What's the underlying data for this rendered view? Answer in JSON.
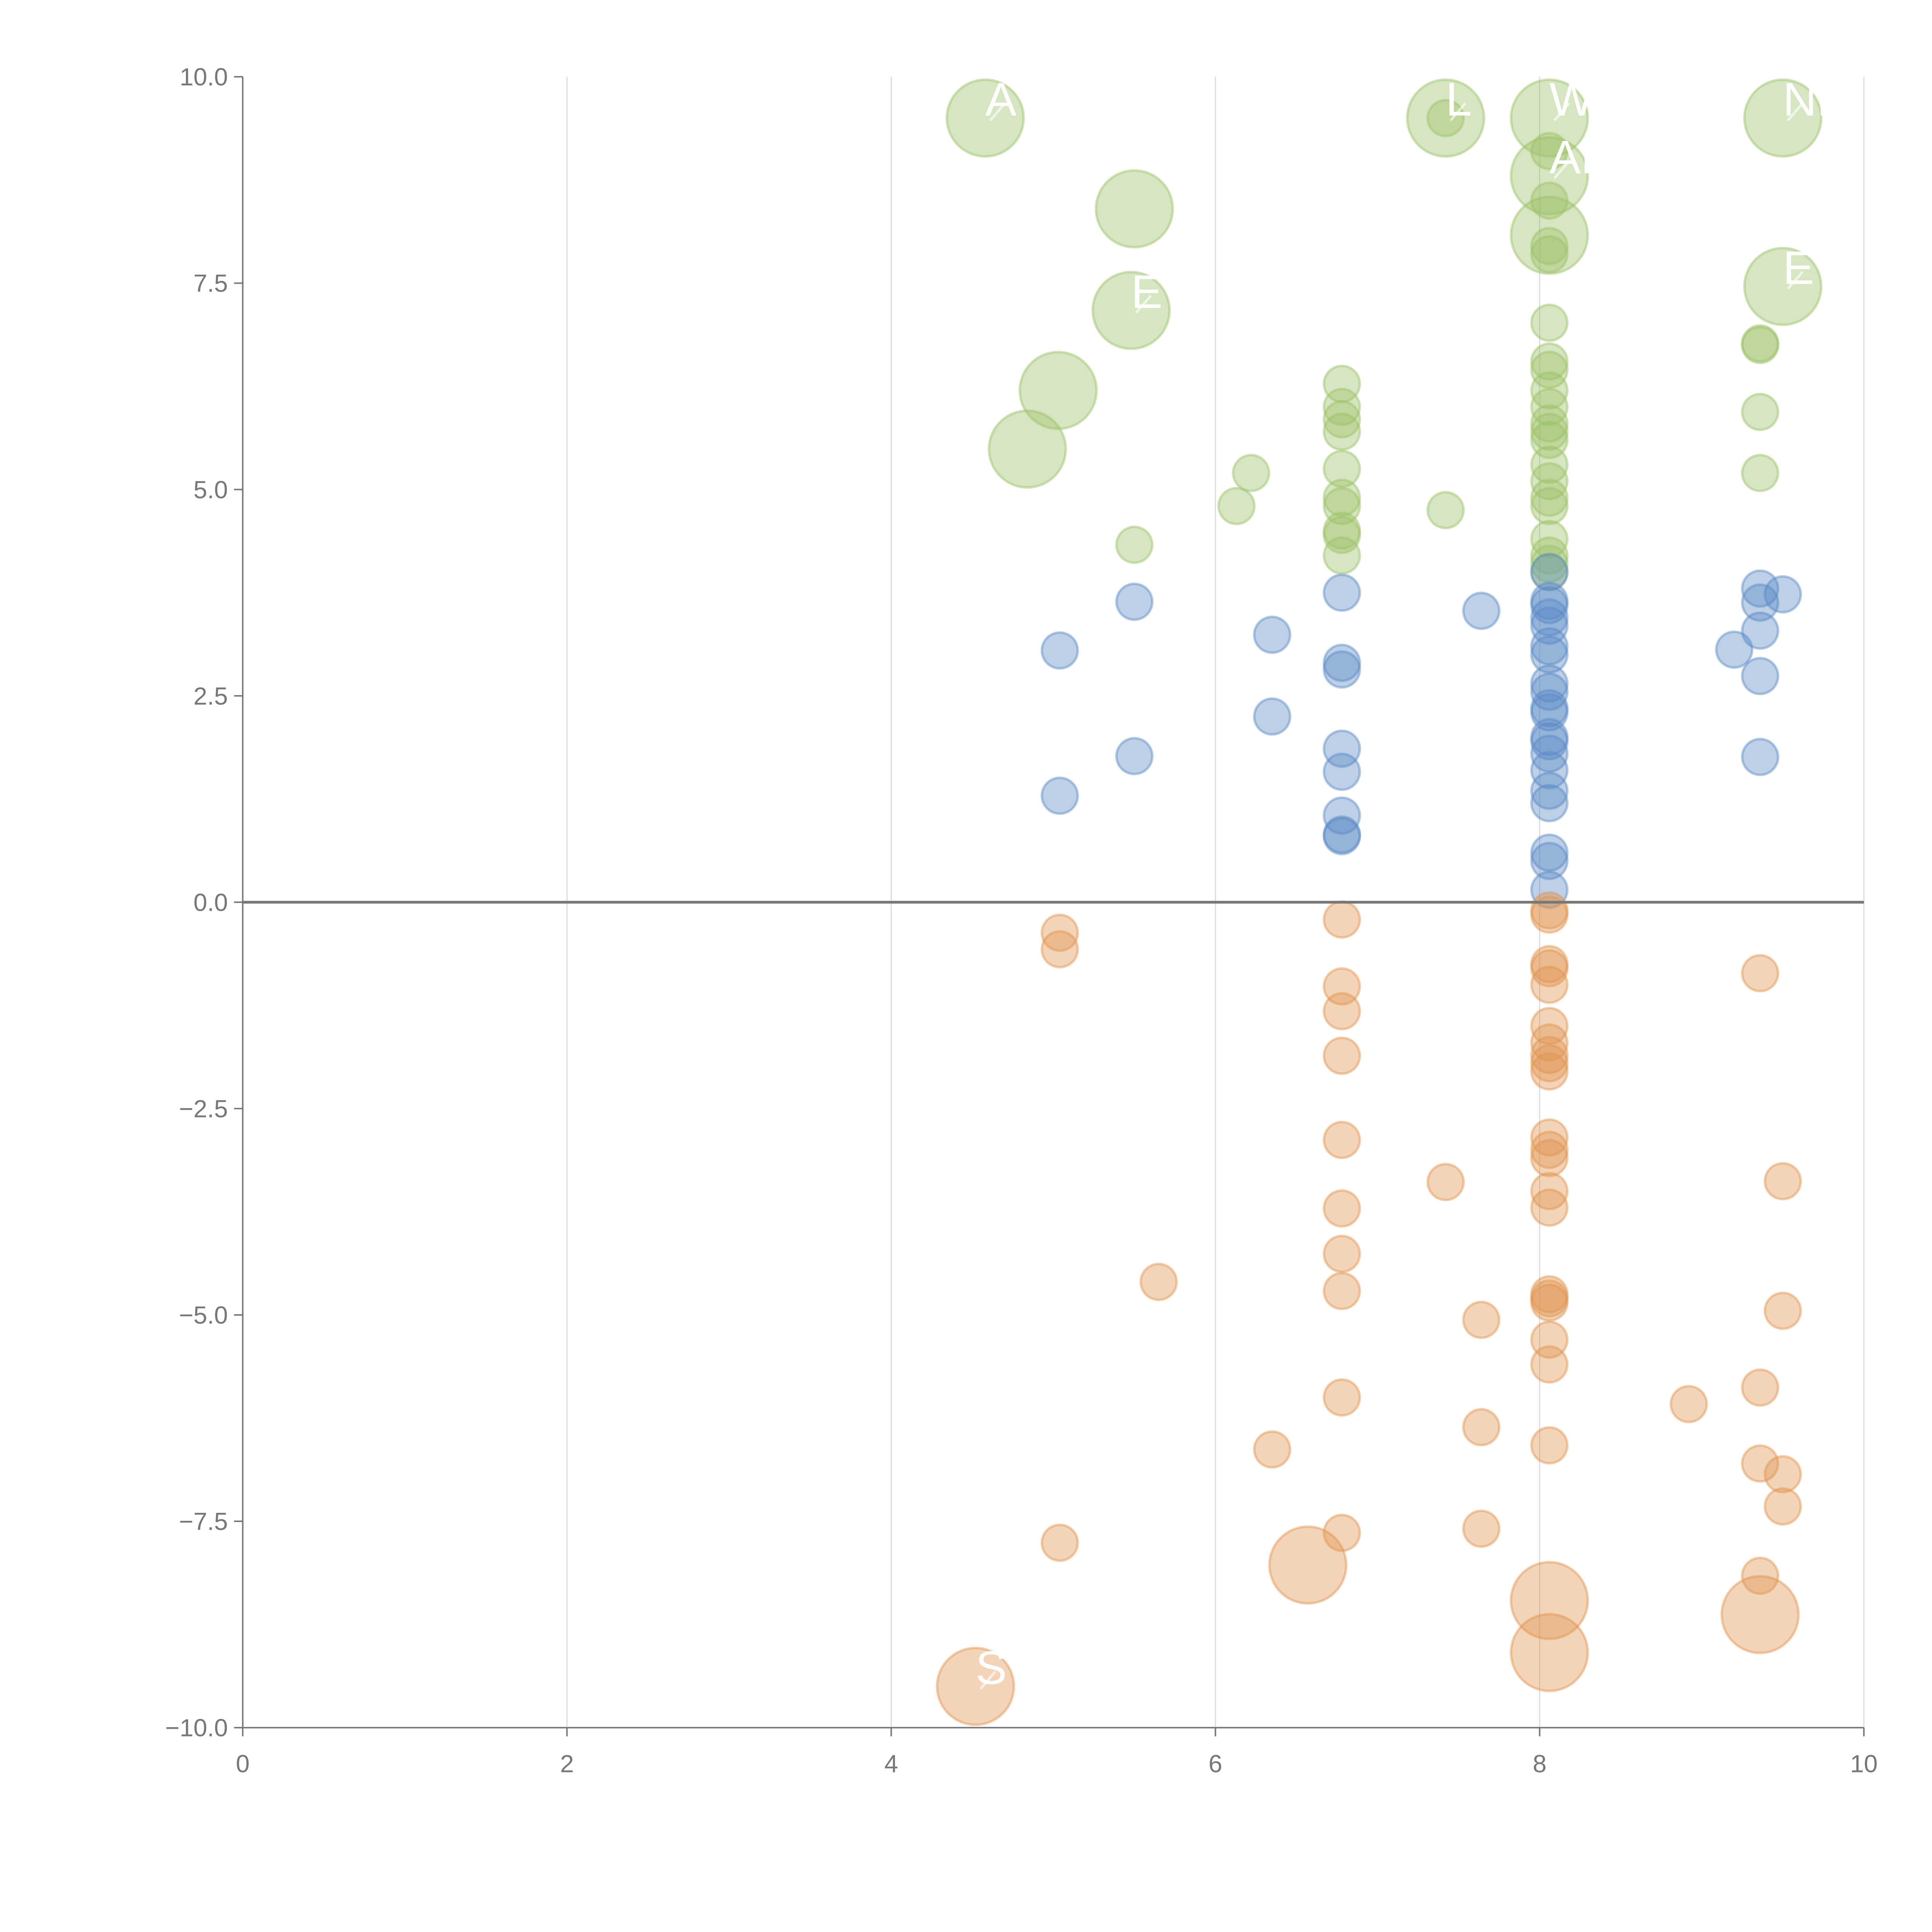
{
  "chart_data": {
    "type": "scatter",
    "title": "",
    "xlabel": "",
    "ylabel": "",
    "xlim": [
      0,
      10
    ],
    "ylim": [
      -10,
      10
    ],
    "x_ticks": [
      "0",
      "2",
      "4",
      "6",
      "8",
      "10"
    ],
    "y_ticks": [
      "10.0",
      "7.5",
      "5.0",
      "2.5",
      "0.0",
      "−2.5",
      "−5.0",
      "−7.5",
      "−10.0"
    ],
    "x_tick_values": [
      0,
      2,
      4,
      6,
      8,
      10
    ],
    "y_tick_values": [
      10,
      7.5,
      5,
      2.5,
      0,
      -2.5,
      -5,
      -7.5,
      -10
    ],
    "grid": "vertical",
    "zero_line": true,
    "point_labels_note": "partially visible white labels",
    "series": [
      {
        "name": "green",
        "color": "#9cc167",
        "points": [
          [
            4.58,
            9.5,
            2,
            "A"
          ],
          [
            5.5,
            8.4,
            2,
            ""
          ],
          [
            5.48,
            7.17,
            2,
            "E"
          ],
          [
            5.03,
            6.2,
            2,
            ""
          ],
          [
            4.84,
            5.49,
            2,
            ""
          ],
          [
            7.42,
            9.5,
            2,
            "L"
          ],
          [
            8.06,
            9.5,
            2,
            "WA"
          ],
          [
            8.06,
            8.8,
            2,
            "AR"
          ],
          [
            8.06,
            8.08,
            2,
            ""
          ],
          [
            9.5,
            9.5,
            2,
            "NE"
          ],
          [
            9.5,
            7.46,
            2,
            "E"
          ],
          [
            7.42,
            9.5,
            1
          ],
          [
            8.06,
            9.1,
            1
          ],
          [
            8.06,
            8.5,
            1
          ],
          [
            8.06,
            7.95,
            1
          ],
          [
            8.06,
            7.85,
            1
          ],
          [
            8.06,
            7.02,
            1
          ],
          [
            8.06,
            6.55,
            1
          ],
          [
            8.06,
            6.45,
            1
          ],
          [
            8.06,
            6.2,
            1
          ],
          [
            8.06,
            6.0,
            1
          ],
          [
            8.06,
            5.8,
            1
          ],
          [
            8.06,
            5.7,
            1
          ],
          [
            8.06,
            5.6,
            1
          ],
          [
            8.06,
            5.3,
            1
          ],
          [
            8.06,
            5.1,
            1
          ],
          [
            8.06,
            4.9,
            1
          ],
          [
            8.06,
            4.8,
            1
          ],
          [
            8.06,
            4.4,
            1
          ],
          [
            8.06,
            4.2,
            1
          ],
          [
            8.06,
            4.1,
            1
          ],
          [
            8.06,
            4.0,
            1
          ],
          [
            9.36,
            6.77,
            1
          ],
          [
            9.36,
            6.75,
            1
          ],
          [
            9.36,
            5.94,
            1
          ],
          [
            9.36,
            5.2,
            1
          ],
          [
            6.78,
            6.28,
            1
          ],
          [
            6.78,
            6.0,
            1
          ],
          [
            6.78,
            5.85,
            1
          ],
          [
            6.78,
            5.7,
            1
          ],
          [
            6.78,
            5.25,
            1
          ],
          [
            6.78,
            4.9,
            1
          ],
          [
            6.78,
            4.8,
            1
          ],
          [
            6.78,
            4.5,
            1
          ],
          [
            6.78,
            4.45,
            1
          ],
          [
            6.78,
            4.2,
            1
          ],
          [
            6.22,
            5.2,
            1
          ],
          [
            6.13,
            4.8,
            1
          ],
          [
            7.42,
            4.75,
            1
          ],
          [
            5.5,
            4.33,
            1
          ]
        ]
      },
      {
        "name": "blue",
        "color": "#5b8ac6",
        "points": [
          [
            5.04,
            3.05,
            1
          ],
          [
            5.04,
            1.29,
            1
          ],
          [
            5.5,
            3.64,
            1
          ],
          [
            5.5,
            1.77,
            1
          ],
          [
            6.35,
            3.24,
            1
          ],
          [
            6.35,
            2.25,
            1
          ],
          [
            6.78,
            3.75,
            1
          ],
          [
            6.78,
            2.9,
            1
          ],
          [
            6.78,
            2.82,
            1
          ],
          [
            6.78,
            1.86,
            1
          ],
          [
            6.78,
            1.58,
            1
          ],
          [
            6.78,
            1.05,
            1
          ],
          [
            6.78,
            0.8,
            1
          ],
          [
            6.78,
            0.82,
            1
          ],
          [
            7.64,
            3.53,
            1
          ],
          [
            8.06,
            4.0,
            1
          ],
          [
            8.06,
            3.65,
            1
          ],
          [
            8.06,
            3.6,
            1
          ],
          [
            8.06,
            3.45,
            1
          ],
          [
            8.06,
            3.35,
            1
          ],
          [
            8.06,
            3.1,
            1
          ],
          [
            8.06,
            3.0,
            1
          ],
          [
            8.06,
            2.65,
            1
          ],
          [
            8.06,
            2.55,
            1
          ],
          [
            8.06,
            2.35,
            1
          ],
          [
            8.06,
            2.3,
            1
          ],
          [
            8.06,
            2.0,
            1
          ],
          [
            8.06,
            1.95,
            1
          ],
          [
            8.06,
            1.8,
            1
          ],
          [
            8.06,
            1.6,
            1
          ],
          [
            8.06,
            1.35,
            1
          ],
          [
            8.06,
            1.2,
            1
          ],
          [
            8.06,
            0.6,
            1
          ],
          [
            8.06,
            0.5,
            1
          ],
          [
            8.06,
            0.15,
            1
          ],
          [
            9.36,
            3.8,
            1
          ],
          [
            9.36,
            3.63,
            1
          ],
          [
            9.36,
            3.29,
            1
          ],
          [
            9.36,
            2.74,
            1
          ],
          [
            9.36,
            1.76,
            1
          ],
          [
            9.5,
            3.73,
            1
          ],
          [
            9.2,
            3.06,
            1
          ]
        ]
      },
      {
        "name": "orange",
        "color": "#e0944f",
        "points": [
          [
            5.04,
            -0.37,
            1
          ],
          [
            5.04,
            -0.57,
            1
          ],
          [
            5.04,
            -7.76,
            1
          ],
          [
            5.65,
            -4.6,
            1
          ],
          [
            6.35,
            -6.63,
            1
          ],
          [
            6.57,
            -8.03,
            2,
            ""
          ],
          [
            6.78,
            -0.21,
            1
          ],
          [
            6.78,
            -1.02,
            1
          ],
          [
            6.78,
            -1.32,
            1
          ],
          [
            6.78,
            -1.86,
            1
          ],
          [
            6.78,
            -2.88,
            1
          ],
          [
            6.78,
            -3.71,
            1
          ],
          [
            6.78,
            -4.26,
            1
          ],
          [
            6.78,
            -4.71,
            1
          ],
          [
            6.78,
            -6.0,
            1
          ],
          [
            6.78,
            -7.64,
            1
          ],
          [
            7.42,
            -3.39,
            1
          ],
          [
            7.64,
            -5.06,
            1
          ],
          [
            7.64,
            -6.36,
            1
          ],
          [
            7.64,
            -7.59,
            1
          ],
          [
            8.06,
            -0.1,
            1
          ],
          [
            8.06,
            -0.15,
            1
          ],
          [
            8.06,
            -0.75,
            1
          ],
          [
            8.06,
            -0.8,
            1
          ],
          [
            8.06,
            -1.0,
            1
          ],
          [
            8.06,
            -1.5,
            1
          ],
          [
            8.06,
            -1.7,
            1
          ],
          [
            8.06,
            -1.85,
            1
          ],
          [
            8.06,
            -1.95,
            1
          ],
          [
            8.06,
            -2.05,
            1
          ],
          [
            8.06,
            -2.85,
            1
          ],
          [
            8.06,
            -3.0,
            1
          ],
          [
            8.06,
            -3.1,
            1
          ],
          [
            8.06,
            -3.5,
            1
          ],
          [
            8.06,
            -3.7,
            1
          ],
          [
            8.06,
            -4.75,
            1
          ],
          [
            8.06,
            -4.8,
            1
          ],
          [
            8.06,
            -4.85,
            1
          ],
          [
            8.06,
            -5.3,
            1
          ],
          [
            8.06,
            -5.6,
            1
          ],
          [
            8.06,
            -6.58,
            1
          ],
          [
            8.06,
            -8.46,
            2,
            ""
          ],
          [
            8.06,
            -9.09,
            2,
            ""
          ],
          [
            8.92,
            -6.08,
            1
          ],
          [
            9.36,
            -0.86,
            1
          ],
          [
            9.36,
            -5.88,
            1
          ],
          [
            9.36,
            -6.8,
            1
          ],
          [
            9.36,
            -8.16,
            1
          ],
          [
            9.36,
            -8.63,
            2,
            ""
          ],
          [
            9.5,
            -3.38,
            1
          ],
          [
            9.5,
            -4.95,
            1
          ],
          [
            9.5,
            -6.93,
            1
          ],
          [
            9.5,
            -7.32,
            1
          ],
          [
            4.52,
            -9.5,
            2,
            "S"
          ]
        ]
      }
    ]
  }
}
